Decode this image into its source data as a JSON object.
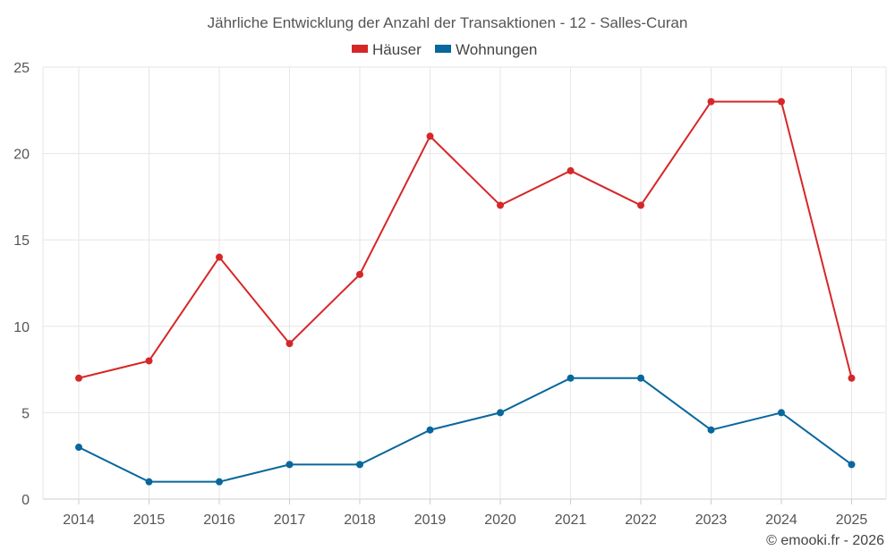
{
  "chart_data": {
    "type": "line",
    "title": "Jährliche Entwicklung der Anzahl der Transaktionen - 12 - Salles-Curan",
    "categories": [
      "2014",
      "2015",
      "2016",
      "2017",
      "2018",
      "2019",
      "2020",
      "2021",
      "2022",
      "2023",
      "2024",
      "2025"
    ],
    "series": [
      {
        "name": "Häuser",
        "color": "#d62728",
        "values": [
          7,
          8,
          14,
          9,
          13,
          21,
          17,
          19,
          17,
          23,
          23,
          7
        ]
      },
      {
        "name": "Wohnungen",
        "color": "#08679c",
        "values": [
          3,
          1,
          1,
          2,
          2,
          4,
          5,
          7,
          7,
          4,
          5,
          2
        ]
      }
    ],
    "ylim": [
      0,
      25
    ],
    "yticks": [
      0,
      5,
      10,
      15,
      20,
      25
    ],
    "grid": true,
    "legend": "top-center",
    "xlabel": "",
    "ylabel": ""
  },
  "credit": "© emooki.fr - 2026"
}
